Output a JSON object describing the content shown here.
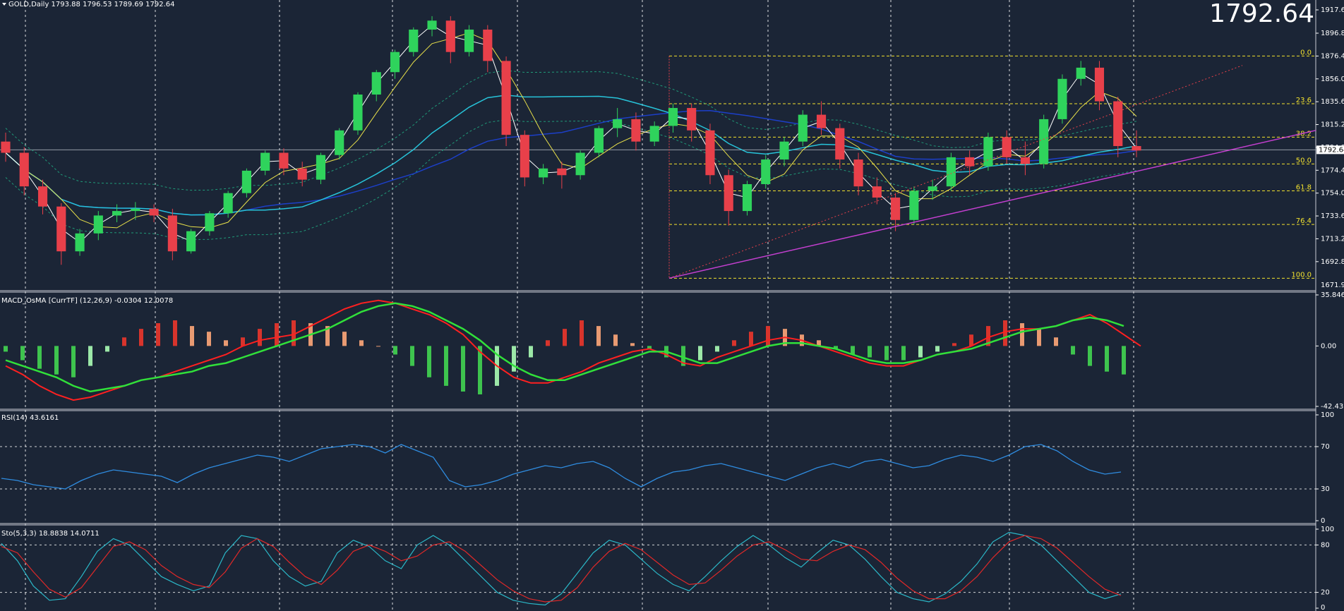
{
  "header": {
    "symbol_line": "GOLD,Daily  1793.88 1796.53 1789.69 1792.64",
    "current_price": "1792.64"
  },
  "panels": {
    "macd_label": "MACD_OsMA [CurrTF] (12,26,9) -0.0304 12.0078",
    "rsi_label": "RSI(14) 43.6161",
    "sto_label": "Sto(5,3,3) 18.8838 14.0711"
  },
  "colors": {
    "background": "#1b2536",
    "bull_candle": "#2fd35c",
    "bear_candle": "#e8404a",
    "fib_lines": "#f2e12e",
    "trendline": "#c43fd0",
    "ma_cyan": "#27c3d9",
    "ma_navy": "#1c3fc8"
  },
  "chart_data": [
    {
      "type": "candlestick",
      "name": "GOLD,Daily",
      "price_axis_ticks": [
        "1917.60",
        "1896.80",
        "1876.40",
        "1856.00",
        "1835.60",
        "1815.20",
        "1794.80",
        "1774.40",
        "1754.00",
        "1733.60",
        "1713.20",
        "1692.80",
        "1671.90"
      ],
      "price_tag": "1792.64",
      "y_range": [
        1671.9,
        1917.6
      ],
      "ohlc_sampled": [
        {
          "o": 1800,
          "h": 1808,
          "c": 1790,
          "l": 1782
        },
        {
          "o": 1790,
          "h": 1795,
          "c": 1760,
          "l": 1752
        },
        {
          "o": 1760,
          "h": 1766,
          "c": 1742,
          "l": 1735
        },
        {
          "o": 1742,
          "h": 1745,
          "c": 1702,
          "l": 1690
        },
        {
          "o": 1702,
          "h": 1722,
          "c": 1718,
          "l": 1698
        },
        {
          "o": 1718,
          "h": 1738,
          "c": 1734,
          "l": 1712
        },
        {
          "o": 1734,
          "h": 1744,
          "c": 1738,
          "l": 1728
        },
        {
          "o": 1738,
          "h": 1746,
          "c": 1740,
          "l": 1730
        },
        {
          "o": 1740,
          "h": 1744,
          "c": 1734,
          "l": 1728
        },
        {
          "o": 1734,
          "h": 1740,
          "c": 1702,
          "l": 1694
        },
        {
          "o": 1702,
          "h": 1722,
          "c": 1720,
          "l": 1700
        },
        {
          "o": 1720,
          "h": 1738,
          "c": 1736,
          "l": 1716
        },
        {
          "o": 1736,
          "h": 1756,
          "c": 1754,
          "l": 1732
        },
        {
          "o": 1754,
          "h": 1776,
          "c": 1774,
          "l": 1750
        },
        {
          "o": 1774,
          "h": 1792,
          "c": 1790,
          "l": 1770
        },
        {
          "o": 1790,
          "h": 1794,
          "c": 1776,
          "l": 1770
        },
        {
          "o": 1776,
          "h": 1782,
          "c": 1766,
          "l": 1760
        },
        {
          "o": 1766,
          "h": 1790,
          "c": 1788,
          "l": 1762
        },
        {
          "o": 1788,
          "h": 1812,
          "c": 1810,
          "l": 1784
        },
        {
          "o": 1810,
          "h": 1844,
          "c": 1842,
          "l": 1806
        },
        {
          "o": 1842,
          "h": 1864,
          "c": 1862,
          "l": 1836
        },
        {
          "o": 1862,
          "h": 1882,
          "c": 1880,
          "l": 1856
        },
        {
          "o": 1880,
          "h": 1902,
          "c": 1900,
          "l": 1876
        },
        {
          "o": 1900,
          "h": 1912,
          "c": 1908,
          "l": 1894
        },
        {
          "o": 1908,
          "h": 1912,
          "c": 1880,
          "l": 1870
        },
        {
          "o": 1880,
          "h": 1904,
          "c": 1900,
          "l": 1876
        },
        {
          "o": 1900,
          "h": 1904,
          "c": 1872,
          "l": 1862
        },
        {
          "o": 1872,
          "h": 1876,
          "c": 1806,
          "l": 1796
        },
        {
          "o": 1806,
          "h": 1810,
          "c": 1768,
          "l": 1760
        },
        {
          "o": 1768,
          "h": 1780,
          "c": 1776,
          "l": 1762
        },
        {
          "o": 1776,
          "h": 1782,
          "c": 1770,
          "l": 1758
        },
        {
          "o": 1770,
          "h": 1792,
          "c": 1790,
          "l": 1766
        },
        {
          "o": 1790,
          "h": 1814,
          "c": 1812,
          "l": 1786
        },
        {
          "o": 1812,
          "h": 1830,
          "c": 1820,
          "l": 1804
        },
        {
          "o": 1820,
          "h": 1826,
          "c": 1800,
          "l": 1792
        },
        {
          "o": 1800,
          "h": 1818,
          "c": 1814,
          "l": 1796
        },
        {
          "o": 1814,
          "h": 1834,
          "c": 1830,
          "l": 1808
        },
        {
          "o": 1830,
          "h": 1834,
          "c": 1810,
          "l": 1800
        },
        {
          "o": 1810,
          "h": 1816,
          "c": 1770,
          "l": 1762
        },
        {
          "o": 1770,
          "h": 1775,
          "c": 1738,
          "l": 1725
        },
        {
          "o": 1738,
          "h": 1765,
          "c": 1762,
          "l": 1734
        },
        {
          "o": 1762,
          "h": 1788,
          "c": 1784,
          "l": 1758
        },
        {
          "o": 1784,
          "h": 1804,
          "c": 1800,
          "l": 1778
        },
        {
          "o": 1800,
          "h": 1828,
          "c": 1824,
          "l": 1796
        },
        {
          "o": 1824,
          "h": 1836,
          "c": 1812,
          "l": 1806
        },
        {
          "o": 1812,
          "h": 1816,
          "c": 1784,
          "l": 1776
        },
        {
          "o": 1784,
          "h": 1790,
          "c": 1760,
          "l": 1752
        },
        {
          "o": 1760,
          "h": 1768,
          "c": 1750,
          "l": 1744
        },
        {
          "o": 1750,
          "h": 1754,
          "c": 1730,
          "l": 1720
        },
        {
          "o": 1730,
          "h": 1760,
          "c": 1756,
          "l": 1726
        },
        {
          "o": 1756,
          "h": 1766,
          "c": 1760,
          "l": 1748
        },
        {
          "o": 1760,
          "h": 1790,
          "c": 1786,
          "l": 1756
        },
        {
          "o": 1786,
          "h": 1792,
          "c": 1778,
          "l": 1770
        },
        {
          "o": 1778,
          "h": 1808,
          "c": 1804,
          "l": 1774
        },
        {
          "o": 1804,
          "h": 1810,
          "c": 1786,
          "l": 1780
        },
        {
          "o": 1786,
          "h": 1800,
          "c": 1780,
          "l": 1770
        },
        {
          "o": 1780,
          "h": 1824,
          "c": 1820,
          "l": 1776
        },
        {
          "o": 1820,
          "h": 1860,
          "c": 1856,
          "l": 1816
        },
        {
          "o": 1856,
          "h": 1872,
          "c": 1866,
          "l": 1850
        },
        {
          "o": 1866,
          "h": 1872,
          "c": 1836,
          "l": 1828
        },
        {
          "o": 1836,
          "h": 1840,
          "c": 1796,
          "l": 1786
        },
        {
          "o": 1796,
          "h": 1810,
          "c": 1792,
          "l": 1786
        }
      ],
      "fibonacci": [
        {
          "level": "0.0",
          "price": 1876.4
        },
        {
          "level": "23.6",
          "price": 1833.8
        },
        {
          "level": "38.2",
          "price": 1804.0
        },
        {
          "level": "50.0",
          "price": 1780.0
        },
        {
          "level": "61.8",
          "price": 1756.0
        },
        {
          "level": "76.4",
          "price": 1726.0
        },
        {
          "level": "100.0",
          "price": 1678.0
        }
      ]
    },
    {
      "type": "histogram+line",
      "name": "MACD_OsMA [CurrTF] (12,26,9)",
      "axis_ticks": [
        "35.8468",
        "0.00",
        "-42.4336"
      ],
      "y_range": [
        -42.4336,
        35.8468
      ],
      "osma": [
        -4,
        -10,
        -16,
        -20,
        -22,
        -14,
        -4,
        6,
        12,
        16,
        18,
        14,
        10,
        4,
        6,
        12,
        16,
        18,
        16,
        14,
        10,
        4,
        0,
        -6,
        -14,
        -22,
        -28,
        -32,
        -34,
        -28,
        -18,
        -8,
        4,
        12,
        18,
        14,
        8,
        2,
        -2,
        -8,
        -14,
        -10,
        -4,
        4,
        10,
        14,
        12,
        8,
        4,
        -2,
        -6,
        -8,
        -10,
        -10,
        -8,
        -4,
        2,
        8,
        14,
        18,
        16,
        12,
        6,
        -6,
        -14,
        -18,
        -20
      ],
      "macd": [
        -14,
        -20,
        -28,
        -34,
        -38,
        -36,
        -32,
        -28,
        -24,
        -22,
        -18,
        -14,
        -10,
        -6,
        0,
        4,
        6,
        8,
        14,
        20,
        26,
        30,
        32,
        30,
        26,
        22,
        16,
        8,
        -4,
        -14,
        -22,
        -26,
        -26,
        -22,
        -18,
        -12,
        -8,
        -4,
        -2,
        -6,
        -12,
        -14,
        -8,
        -4,
        0,
        4,
        6,
        4,
        0,
        -4,
        -8,
        -12,
        -14,
        -14,
        -10,
        -6,
        -4,
        0,
        6,
        10,
        12,
        12,
        14,
        18,
        22,
        16,
        8,
        0
      ],
      "signal": [
        -10,
        -14,
        -18,
        -22,
        -28,
        -32,
        -30,
        -28,
        -24,
        -22,
        -20,
        -18,
        -14,
        -12,
        -8,
        -4,
        0,
        4,
        8,
        12,
        18,
        24,
        28,
        30,
        28,
        24,
        18,
        12,
        4,
        -6,
        -14,
        -20,
        -24,
        -24,
        -20,
        -16,
        -12,
        -8,
        -4,
        -4,
        -8,
        -12,
        -12,
        -8,
        -4,
        0,
        2,
        2,
        0,
        -2,
        -6,
        -10,
        -12,
        -12,
        -10,
        -6,
        -4,
        -2,
        2,
        6,
        10,
        12,
        14,
        18,
        20,
        18,
        14
      ]
    },
    {
      "type": "line",
      "name": "RSI(14)",
      "axis_ticks": [
        "100",
        "70",
        "30",
        "0"
      ],
      "y_range": [
        0,
        100
      ],
      "values": [
        40,
        38,
        34,
        32,
        30,
        38,
        44,
        48,
        46,
        44,
        42,
        36,
        44,
        50,
        54,
        58,
        62,
        60,
        56,
        62,
        68,
        70,
        72,
        70,
        64,
        72,
        66,
        60,
        38,
        32,
        34,
        38,
        44,
        48,
        52,
        50,
        54,
        56,
        50,
        40,
        32,
        40,
        46,
        48,
        52,
        54,
        50,
        46,
        42,
        38,
        44,
        50,
        54,
        50,
        56,
        58,
        54,
        50,
        52,
        58,
        62,
        60,
        56,
        62,
        70,
        72,
        66,
        56,
        48,
        44,
        46
      ]
    },
    {
      "type": "line",
      "name": "Sto(5,3,3)",
      "axis_ticks": [
        "100",
        "80",
        "20",
        "0"
      ],
      "y_range": [
        0,
        100
      ],
      "k": [
        82,
        60,
        28,
        10,
        12,
        40,
        72,
        88,
        80,
        60,
        40,
        30,
        22,
        28,
        70,
        92,
        88,
        60,
        40,
        28,
        34,
        70,
        86,
        78,
        60,
        50,
        80,
        92,
        80,
        60,
        40,
        20,
        10,
        6,
        4,
        18,
        44,
        70,
        86,
        80,
        62,
        44,
        30,
        22,
        40,
        60,
        78,
        92,
        80,
        64,
        52,
        70,
        86,
        80,
        62,
        40,
        20,
        12,
        8,
        18,
        34,
        56,
        84,
        96,
        92,
        80,
        60,
        40,
        20,
        12,
        18
      ],
      "d": [
        78,
        70,
        46,
        24,
        14,
        26,
        52,
        78,
        84,
        74,
        54,
        40,
        30,
        26,
        46,
        76,
        88,
        78,
        58,
        40,
        30,
        48,
        72,
        80,
        72,
        60,
        66,
        80,
        84,
        72,
        54,
        36,
        22,
        12,
        8,
        10,
        26,
        52,
        72,
        82,
        74,
        58,
        42,
        30,
        32,
        48,
        66,
        80,
        84,
        74,
        62,
        60,
        72,
        80,
        74,
        58,
        38,
        22,
        12,
        12,
        22,
        40,
        64,
        84,
        92,
        88,
        76,
        58,
        40,
        24,
        16
      ]
    }
  ]
}
